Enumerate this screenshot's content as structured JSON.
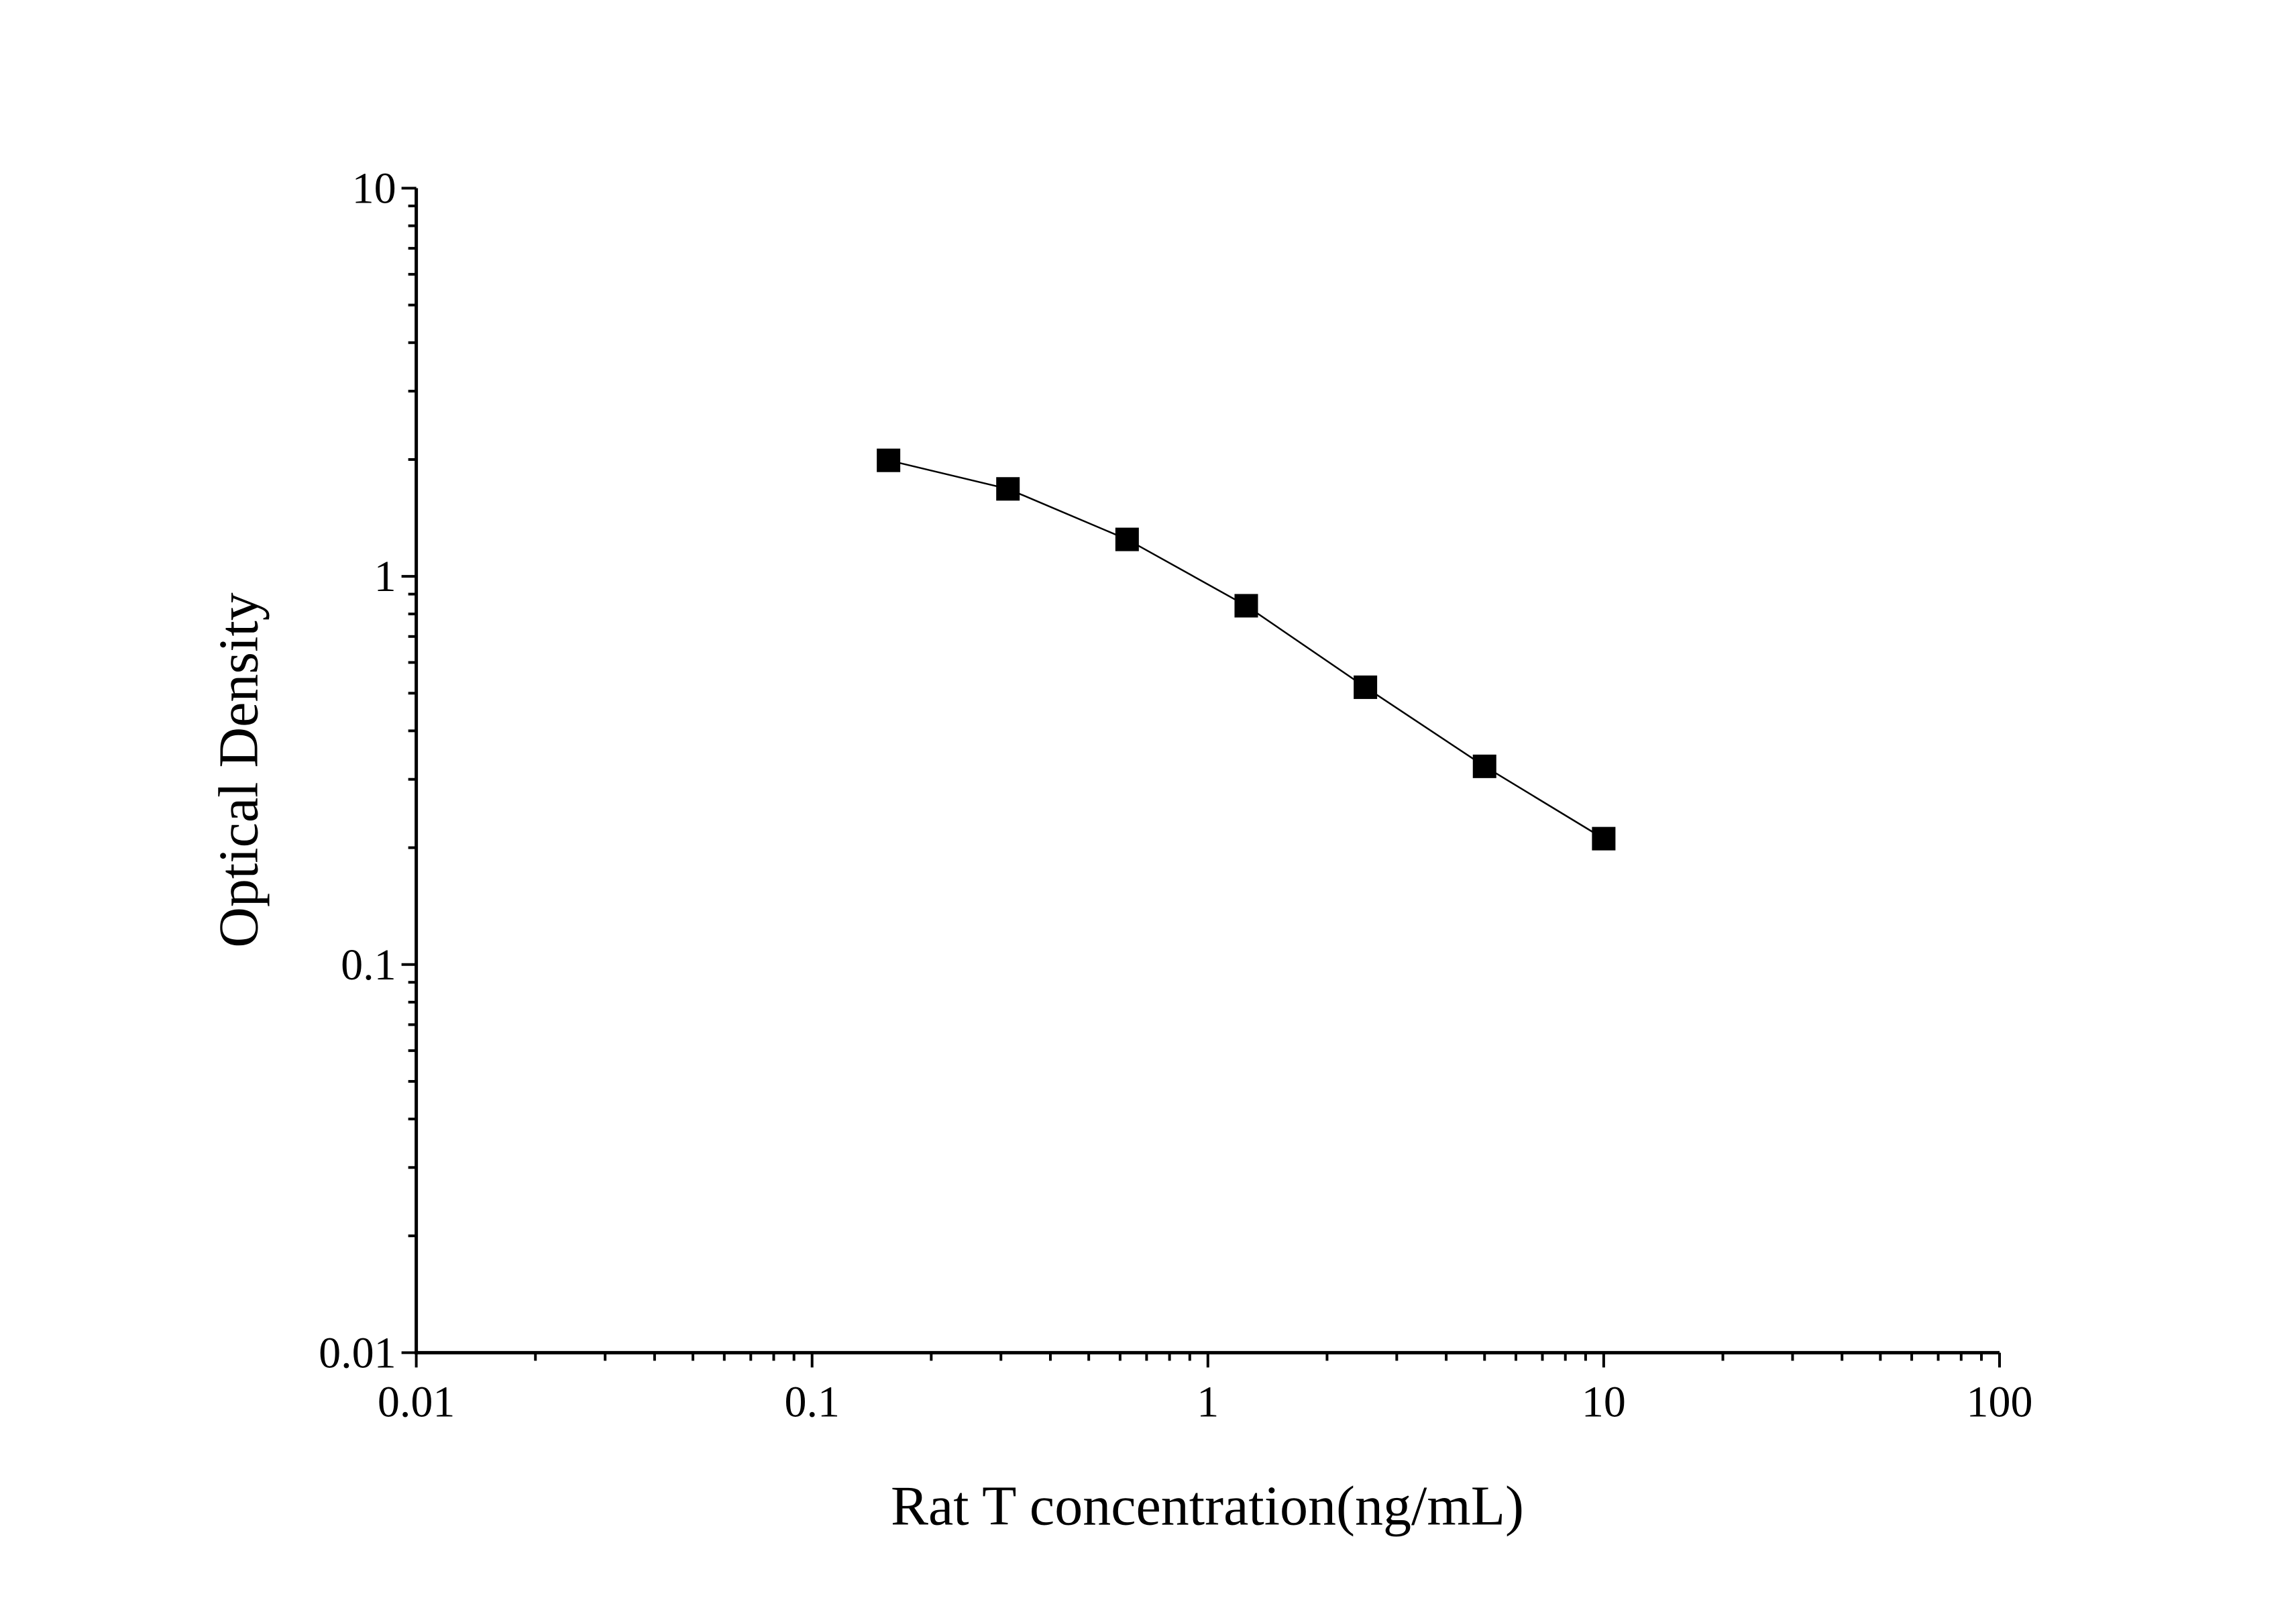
{
  "chart_data": {
    "type": "line",
    "x_label": "Rat T concentration(ng/mL)",
    "y_label": "Optical Density",
    "x": [
      0.156,
      0.3125,
      0.625,
      1.25,
      2.5,
      5,
      10
    ],
    "series": [
      {
        "name": "Optical Density",
        "color": "#000000",
        "values": [
          1.99,
          1.68,
          1.245,
          0.84,
          0.518,
          0.324,
          0.211
        ]
      }
    ],
    "xlim": [
      0.01,
      100
    ],
    "ylim": [
      0.01,
      10
    ],
    "xticks": [
      0.01,
      0.1,
      1,
      10,
      100
    ],
    "yticks": [
      0.01,
      0.1,
      1,
      10
    ],
    "xscale": "log",
    "yscale": "log",
    "grid": false,
    "marker": "square"
  }
}
